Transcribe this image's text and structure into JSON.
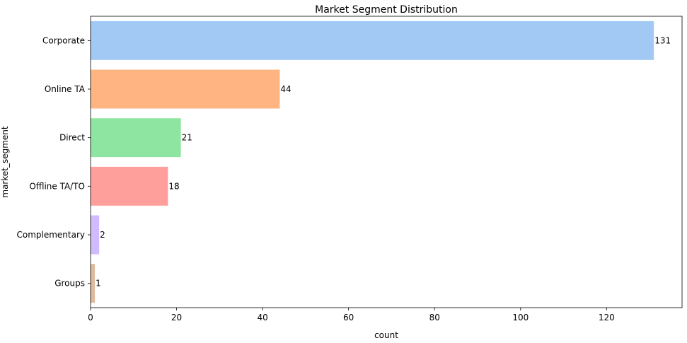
{
  "chart_data": {
    "type": "bar",
    "orientation": "horizontal",
    "title": "Market Segment Distribution",
    "xlabel": "count",
    "ylabel": "market_segment",
    "categories": [
      "Corporate",
      "Online TA",
      "Direct",
      "Offline TA/TO",
      "Complementary",
      "Groups"
    ],
    "values": [
      131,
      44,
      21,
      18,
      2,
      1
    ],
    "data_labels": [
      "131",
      "44",
      "21",
      "18",
      "2",
      "1"
    ],
    "colors": [
      "#a1c9f4",
      "#ffb482",
      "#8de5a1",
      "#ff9f9b",
      "#d0bbff",
      "#debb9b"
    ],
    "xlim": [
      0,
      137.55
    ],
    "xticks": [
      0,
      20,
      40,
      60,
      80,
      100,
      120
    ],
    "xtick_labels": [
      "0",
      "20",
      "40",
      "60",
      "80",
      "100",
      "120"
    ],
    "grid": false,
    "legend": "none"
  }
}
